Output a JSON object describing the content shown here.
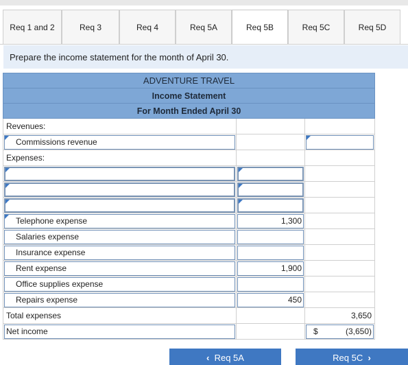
{
  "tabs": [
    {
      "label": "Req 1 and 2"
    },
    {
      "label": "Req 3"
    },
    {
      "label": "Req 4"
    },
    {
      "label": "Req 5A"
    },
    {
      "label": "Req 5B",
      "active": true
    },
    {
      "label": "Req 5C"
    },
    {
      "label": "Req 5D"
    }
  ],
  "instruction": "Prepare the income statement for the month of April 30.",
  "statement": {
    "company": "ADVENTURE TRAVEL",
    "title": "Income Statement",
    "period": "For Month Ended April 30",
    "revenues_label": "Revenues:",
    "commissions_label": "Commissions revenue",
    "expenses_label": "Expenses:",
    "telephone_label": "Telephone expense",
    "telephone_value": "1,300",
    "salaries_label": "Salaries expense",
    "insurance_label": "Insurance expense",
    "rent_label": "Rent expense",
    "rent_value": "1,900",
    "office_label": "Office supplies expense",
    "repairs_label": "Repairs expense",
    "repairs_value": "450",
    "total_label": "Total expenses",
    "total_value": "3,650",
    "net_label": "Net income",
    "net_currency": "$",
    "net_value": "(3,650)"
  },
  "nav": {
    "prev_label": "Req 5A",
    "next_label": "Req 5C",
    "prev_icon": "chevron-left-icon",
    "next_icon": "chevron-right-icon"
  },
  "colors": {
    "header_bg": "#7ea7d6",
    "instruction_bg": "#e6eef8",
    "button_bg": "#3f78c2",
    "input_flag": "#3d78c4"
  }
}
